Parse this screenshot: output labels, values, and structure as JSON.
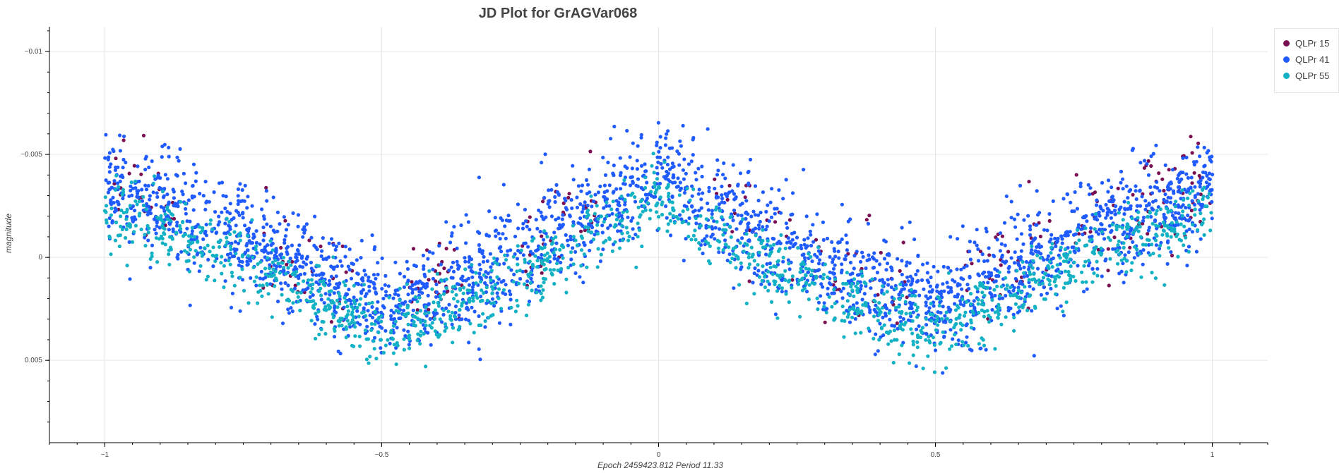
{
  "chart_data": {
    "type": "scatter",
    "title": "JD Plot for GrAGVar068",
    "xlabel": "Epoch  2459423.812   Period 11.33",
    "ylabel": "magnitude",
    "xlim": [
      -1.1,
      1.1
    ],
    "ylim": [
      0.009,
      -0.0112
    ],
    "y_inverted": true,
    "x_ticks": [
      -1,
      -0.5,
      0,
      0.5,
      1
    ],
    "x_tick_labels": [
      "−1",
      "−0.5",
      "0",
      "0.5",
      "1"
    ],
    "y_ticks": [
      -0.01,
      -0.005,
      0,
      0.005
    ],
    "y_tick_labels": [
      "−0.01",
      "−0.005",
      "0",
      "0.005"
    ],
    "grid": true,
    "legend_position": "top-right, outside plot",
    "series_shape": {
      "description": "phase-folded light curve, mirrored about phase 0; points cluster around baseline magnitude per phase",
      "baseline_x": [
        -1.0,
        -0.9,
        -0.75,
        -0.6,
        -0.5,
        -0.35,
        -0.2,
        -0.1,
        0.0,
        0.1,
        0.2,
        0.35,
        0.5,
        0.6,
        0.75,
        0.9,
        1.0
      ],
      "baseline_y": [
        -0.0035,
        -0.0025,
        -0.001,
        0.001,
        0.0025,
        0.0012,
        -0.0008,
        -0.0025,
        -0.004,
        -0.0025,
        -0.0008,
        0.001,
        0.0025,
        0.001,
        -0.001,
        -0.0025,
        -0.0035
      ]
    },
    "series": [
      {
        "name": "QLPr 15",
        "color": "#7a0f54",
        "count": 260,
        "y_offset": -0.0003,
        "spread": 0.0022
      },
      {
        "name": "QLPr 41",
        "color": "#1f5bff",
        "count": 2600,
        "y_offset": 0.0,
        "spread": 0.0021
      },
      {
        "name": "QLPr 55",
        "color": "#12b2c4",
        "count": 1400,
        "y_offset": 0.0012,
        "spread": 0.0014
      }
    ]
  },
  "legend": {
    "items": [
      {
        "label": "QLPr 15",
        "color": "#7a0f54"
      },
      {
        "label": "QLPr 41",
        "color": "#1f5bff"
      },
      {
        "label": "QLPr 55",
        "color": "#12b2c4"
      }
    ]
  }
}
